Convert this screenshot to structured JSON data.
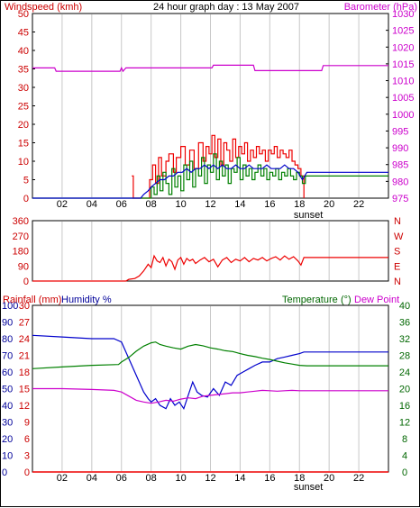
{
  "header": {
    "left_title": "Windspeed (kmh)",
    "center_title": "24 hour graph day : 13 May 2007",
    "right_title": "Barometer (hPa)"
  },
  "colors": {
    "wind_axis": "#cc0000",
    "baro_axis": "#cc00cc",
    "gust": "#ee0000",
    "avg_wind": "#008000",
    "wind_blue": "#0000cc",
    "baro_line": "#cc00cc",
    "direction": "#ee0000",
    "humidity_axis": "#000099",
    "temp_axis": "#006600",
    "temp_line": "#008000",
    "dew_line": "#cc00cc",
    "humid_line": "#0000cc",
    "rain_line": "#ee0000",
    "grid": "#c8c8c8",
    "zero_line": "#999999"
  },
  "x_axis": {
    "ticks": [
      "02",
      "04",
      "06",
      "08",
      "10",
      "12",
      "14",
      "16",
      "18",
      "20",
      "22"
    ],
    "marker_label": "sunset"
  },
  "panel2": {
    "left_ticks": [
      "360",
      "270",
      "180",
      "90",
      "0"
    ],
    "right_ticks": [
      "N",
      "W",
      "S",
      "E",
      "N"
    ]
  },
  "panel3": {
    "rain_label": "Rainfall (mm)",
    "humidity_label": "Humidity %",
    "temp_label": "Temperature",
    "temp_unit_glyph": "(°)",
    "dew_label": "Dew Point"
  },
  "chart_data": [
    {
      "type": "line",
      "title": "24 hour graph day : 13 May 2007",
      "ylabel": "Windspeed (kmh)",
      "y2label": "Barometer (hPa)",
      "xlim": [
        0,
        24
      ],
      "ylim": [
        0,
        50
      ],
      "y2lim": [
        975,
        1030
      ],
      "y_ticks": [
        0,
        5,
        10,
        15,
        20,
        25,
        30,
        35,
        40,
        45,
        50
      ],
      "y2_ticks": [
        975,
        980,
        985,
        990,
        995,
        1000,
        1005,
        1010,
        1015,
        1020,
        1025,
        1030
      ],
      "series": [
        {
          "axis": "y2",
          "color": "baro_line",
          "x": [
            0,
            1.5,
            1.6,
            5.9,
            6,
            6.1,
            6.3,
            12.1,
            12.2,
            14.9,
            15,
            19.5,
            19.6,
            24
          ],
          "values": [
            1013.8,
            1013.8,
            1012.8,
            1012.8,
            1013.8,
            1012.8,
            1013.8,
            1013.8,
            1014.6,
            1014.6,
            1013.0,
            1013.0,
            1014.5,
            1014.5
          ]
        },
        {
          "axis": "y",
          "color": "gust",
          "step": true,
          "x": [
            6.7,
            6.8,
            6.9,
            7.8,
            7.9,
            8.1,
            8.3,
            8.5,
            8.7,
            9.0,
            9.2,
            9.5,
            9.7,
            10.0,
            10.3,
            10.6,
            10.9,
            11.2,
            11.5,
            11.7,
            11.9,
            12.1,
            12.3,
            12.5,
            12.7,
            12.9,
            13.1,
            13.3,
            13.5,
            13.7,
            13.9,
            14.1,
            14.3,
            14.5,
            14.7,
            14.9,
            15.1,
            15.3,
            15.5,
            15.7,
            15.9,
            16.1,
            16.3,
            16.5,
            16.7,
            16.9,
            17.1,
            17.3,
            17.5,
            17.7,
            17.9,
            18.1,
            18.3
          ],
          "values": [
            6,
            0,
            0,
            0,
            5,
            9,
            4,
            11,
            6,
            10,
            12,
            7,
            11,
            14,
            9,
            13,
            8,
            15,
            10,
            14,
            12,
            17,
            11,
            16,
            9,
            15,
            13,
            10,
            16,
            11,
            14,
            12,
            15,
            10,
            13,
            11,
            14,
            12,
            13,
            10,
            13,
            12,
            14,
            11,
            13,
            12,
            11,
            13,
            10,
            9,
            8,
            6,
            0
          ]
        },
        {
          "axis": "y",
          "color": "avg_wind",
          "step": true,
          "x": [
            0,
            7.9,
            8.0,
            8.2,
            8.4,
            8.6,
            8.8,
            9.0,
            9.2,
            9.4,
            9.6,
            9.8,
            10.0,
            10.2,
            10.4,
            10.6,
            10.8,
            11.0,
            11.2,
            11.4,
            11.6,
            11.8,
            12.0,
            12.2,
            12.4,
            12.6,
            12.8,
            13.0,
            13.2,
            13.4,
            13.6,
            13.8,
            14.0,
            14.2,
            14.4,
            14.6,
            14.8,
            15.0,
            15.2,
            15.4,
            15.6,
            15.8,
            16.0,
            16.2,
            16.4,
            16.6,
            16.8,
            17.0,
            17.2,
            17.4,
            17.6,
            17.8,
            18.0,
            18.2,
            18.4,
            24
          ],
          "values": [
            0,
            0,
            3,
            1,
            6,
            2,
            7,
            4,
            1,
            8,
            3,
            6,
            2,
            9,
            5,
            10,
            3,
            8,
            6,
            11,
            4,
            9,
            7,
            12,
            5,
            10,
            6,
            9,
            4,
            8,
            7,
            11,
            5,
            9,
            6,
            8,
            5,
            7,
            9,
            6,
            8,
            5,
            7,
            6,
            8,
            5,
            7,
            6,
            8,
            6,
            5,
            7,
            6,
            4,
            6,
            6
          ]
        },
        {
          "axis": "y",
          "color": "wind_blue",
          "x": [
            0,
            7.3,
            7.5,
            7.8,
            8.0,
            8.3,
            8.6,
            8.9,
            9.2,
            9.5,
            9.8,
            10.1,
            10.4,
            10.7,
            11.0,
            11.3,
            11.6,
            11.9,
            12.2,
            12.5,
            12.8,
            13.1,
            13.4,
            13.7,
            14.0,
            14.3,
            14.6,
            14.9,
            15.2,
            15.5,
            15.8,
            16.1,
            16.4,
            16.7,
            17.0,
            17.3,
            17.6,
            17.9,
            18.2,
            18.5,
            24
          ],
          "values": [
            0,
            0,
            1,
            2,
            3,
            4,
            5,
            5,
            6,
            6,
            7,
            7,
            8,
            7,
            8,
            8,
            9,
            8,
            9,
            8,
            9,
            8,
            8,
            9,
            8,
            8,
            9,
            8,
            8,
            8,
            9,
            8,
            8,
            8,
            9,
            8,
            8,
            7,
            5,
            7,
            7
          ]
        }
      ]
    },
    {
      "type": "line",
      "ylabel": "",
      "xlim": [
        0,
        24
      ],
      "ylim": [
        0,
        360
      ],
      "series": [
        {
          "color": "direction",
          "x": [
            0,
            6.3,
            6.5,
            6.9,
            7.2,
            7.5,
            7.8,
            8.0,
            8.2,
            8.4,
            8.6,
            8.8,
            9.0,
            9.2,
            9.4,
            9.6,
            9.8,
            10.0,
            10.2,
            10.4,
            10.6,
            10.8,
            11.0,
            11.3,
            11.6,
            11.9,
            12.2,
            12.5,
            12.8,
            13.1,
            13.4,
            13.7,
            14.0,
            14.3,
            14.6,
            14.9,
            15.2,
            15.5,
            15.8,
            16.1,
            16.4,
            16.7,
            17.0,
            17.3,
            17.6,
            17.9,
            18.1,
            18.3,
            24
          ],
          "values": [
            0,
            0,
            10,
            15,
            30,
            60,
            100,
            80,
            150,
            120,
            110,
            140,
            90,
            130,
            115,
            70,
            125,
            140,
            100,
            135,
            120,
            130,
            105,
            125,
            140,
            115,
            130,
            85,
            125,
            140,
            110,
            130,
            120,
            140,
            115,
            135,
            125,
            140,
            120,
            135,
            145,
            125,
            150,
            130,
            145,
            120,
            95,
            140,
            140
          ]
        }
      ]
    },
    {
      "type": "line",
      "ylabel": "Rainfall (mm)  Humidity %",
      "y2label": "Temperature  Dew Point",
      "xlim": [
        0,
        24
      ],
      "ylim": [
        0,
        30
      ],
      "humidity_lim": [
        0,
        100
      ],
      "y2lim": [
        0,
        40
      ],
      "rain_ticks": [
        0,
        3,
        6,
        9,
        12,
        15,
        18,
        21,
        24,
        27,
        30
      ],
      "humidity_ticks": [
        0,
        10,
        20,
        30,
        40,
        50,
        60,
        70,
        80,
        90,
        100
      ],
      "temp_ticks": [
        0,
        4,
        8,
        12,
        16,
        20,
        24,
        28,
        32,
        36,
        40
      ],
      "series": [
        {
          "name": "Humidity %",
          "axis": "humidity",
          "color": "humid_line",
          "x": [
            0,
            2.0,
            4.0,
            5.5,
            6.0,
            6.5,
            7.0,
            7.5,
            7.8,
            8.0,
            8.3,
            8.6,
            9.0,
            9.3,
            9.6,
            9.9,
            10.2,
            10.5,
            10.8,
            11.1,
            11.4,
            11.8,
            12.2,
            12.6,
            13.0,
            13.4,
            13.8,
            14.2,
            14.6,
            15.0,
            15.5,
            16.0,
            16.5,
            17.0,
            17.5,
            18.0,
            18.3,
            24
          ],
          "values": [
            82,
            81,
            80,
            80,
            78,
            68,
            58,
            48,
            44,
            42,
            44,
            40,
            38,
            44,
            40,
            42,
            38,
            46,
            54,
            48,
            46,
            45,
            50,
            46,
            54,
            52,
            58,
            60,
            62,
            64,
            66,
            66,
            68,
            69,
            70,
            71,
            72,
            72
          ]
        },
        {
          "name": "Temperature",
          "axis": "temp",
          "color": "temp_line",
          "x": [
            0,
            2.0,
            4.0,
            5.8,
            6.0,
            6.5,
            7.0,
            7.5,
            8.0,
            8.3,
            8.6,
            9.0,
            9.5,
            10.0,
            10.5,
            11.0,
            11.5,
            12.0,
            12.5,
            13.0,
            13.5,
            14.0,
            14.5,
            15.0,
            15.5,
            16.0,
            16.5,
            17.0,
            17.5,
            18.0,
            18.5,
            24
          ],
          "values": [
            24.8,
            25.2,
            25.6,
            25.8,
            26.4,
            27.5,
            29,
            30.2,
            31,
            31.2,
            30.6,
            30.2,
            29.8,
            29.5,
            30.2,
            30.6,
            30.3,
            29.8,
            29.5,
            29.1,
            28.9,
            28.4,
            28.0,
            27.7,
            27.3,
            27.0,
            26.6,
            26.2,
            25.9,
            25.6,
            25.5,
            25.5
          ]
        },
        {
          "name": "Dew Point",
          "axis": "temp",
          "color": "dew_line",
          "x": [
            0,
            2.0,
            4.0,
            5.5,
            6.0,
            6.5,
            7.0,
            7.5,
            8.0,
            8.5,
            9.0,
            9.5,
            10.0,
            10.5,
            11.0,
            11.5,
            12.0,
            12.5,
            13.0,
            13.5,
            14.0,
            14.5,
            15.0,
            15.5,
            16.0,
            16.5,
            17.0,
            17.5,
            18.0,
            24
          ],
          "values": [
            20,
            20,
            19.8,
            19.6,
            19.2,
            18.2,
            17.2,
            16.8,
            16.5,
            16.8,
            17.2,
            17.0,
            17.5,
            17.8,
            17.6,
            18.2,
            18.4,
            18.6,
            18.8,
            19.0,
            19.0,
            19.2,
            19.4,
            19.6,
            19.5,
            19.4,
            19.5,
            19.6,
            19.5,
            19.5
          ]
        },
        {
          "name": "Rainfall (mm)",
          "axis": "rain",
          "color": "rain_line",
          "x": [
            0,
            24
          ],
          "values": [
            0,
            0
          ]
        }
      ]
    }
  ]
}
